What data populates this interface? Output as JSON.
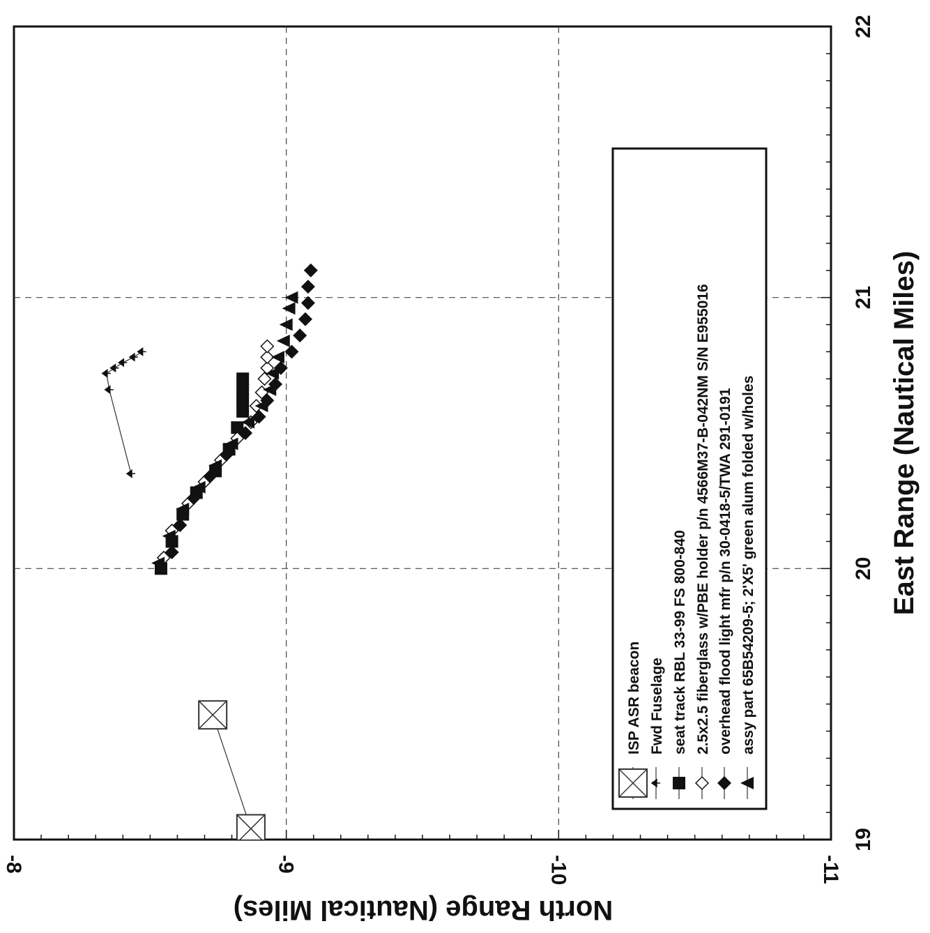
{
  "chart_data": {
    "type": "scatter",
    "xlabel": "East Range (Nautical Miles)",
    "ylabel": "North Range (Nautical Miles)",
    "xlim": [
      19,
      22
    ],
    "ylim": [
      -11,
      -8
    ],
    "xticks": [
      19,
      20,
      21,
      22
    ],
    "xtick_labels": [
      "19",
      "20",
      "21",
      "22"
    ],
    "yticks": [
      -8,
      -9,
      -10,
      -11
    ],
    "ytick_labels": [
      "-8",
      "-9",
      "-10",
      "-11"
    ],
    "grid": true,
    "legend_position": "lower-left",
    "series": [
      {
        "name": "ISP ASR beacon",
        "marker": "boxed-x",
        "line": true,
        "points": [
          [
            19.04,
            -8.87
          ],
          [
            19.46,
            -8.73
          ]
        ]
      },
      {
        "name": "Fwd Fuselage",
        "marker": "small-arrow",
        "line": true,
        "points": [
          [
            20.35,
            -8.43
          ],
          [
            20.66,
            -8.35
          ],
          [
            20.72,
            -8.34
          ],
          [
            20.74,
            -8.37
          ],
          [
            20.76,
            -8.4
          ],
          [
            20.78,
            -8.44
          ],
          [
            20.8,
            -8.47
          ]
        ]
      },
      {
        "name": "seat track RBL 33-99 FS 800-840",
        "marker": "filled-square",
        "line": false,
        "points": [
          [
            20.0,
            -8.54
          ],
          [
            20.1,
            -8.58
          ],
          [
            20.2,
            -8.62
          ],
          [
            20.28,
            -8.67
          ],
          [
            20.36,
            -8.74
          ],
          [
            20.44,
            -8.79
          ],
          [
            20.52,
            -8.82
          ],
          [
            20.58,
            -8.84
          ],
          [
            20.62,
            -8.84
          ],
          [
            20.66,
            -8.84
          ],
          [
            20.7,
            -8.84
          ]
        ]
      },
      {
        "name": "2.5x2.5 fiberglass w/PBE holder p/n 4566M37-B-042NM S/N E955016",
        "marker": "open-diamond",
        "line": false,
        "points": [
          [
            20.04,
            -8.55
          ],
          [
            20.14,
            -8.58
          ],
          [
            20.24,
            -8.64
          ],
          [
            20.32,
            -8.7
          ],
          [
            20.4,
            -8.76
          ],
          [
            20.48,
            -8.82
          ],
          [
            20.54,
            -8.87
          ],
          [
            20.6,
            -8.89
          ],
          [
            20.65,
            -8.91
          ],
          [
            20.7,
            -8.92
          ],
          [
            20.74,
            -8.93
          ],
          [
            20.78,
            -8.93
          ],
          [
            20.82,
            -8.93
          ]
        ]
      },
      {
        "name": "overhead flood light mfr p/n 30-0418-5/TWA 291-0191",
        "marker": "filled-diamond",
        "line": false,
        "points": [
          [
            20.06,
            -8.58
          ],
          [
            20.16,
            -8.61
          ],
          [
            20.26,
            -8.66
          ],
          [
            20.34,
            -8.72
          ],
          [
            20.42,
            -8.78
          ],
          [
            20.5,
            -8.85
          ],
          [
            20.56,
            -8.9
          ],
          [
            20.62,
            -8.93
          ],
          [
            20.68,
            -8.96
          ],
          [
            20.74,
            -8.98
          ],
          [
            20.8,
            -9.02
          ],
          [
            20.86,
            -9.05
          ],
          [
            20.92,
            -9.07
          ],
          [
            20.98,
            -9.08
          ],
          [
            21.04,
            -9.08
          ],
          [
            21.1,
            -9.09
          ]
        ]
      },
      {
        "name": "assy part 65B54209-5; 2'X5' green alum folded w/holes",
        "marker": "filled-triangle",
        "line": false,
        "points": [
          [
            20.02,
            -8.53
          ],
          [
            20.12,
            -8.57
          ],
          [
            20.22,
            -8.62
          ],
          [
            20.3,
            -8.68
          ],
          [
            20.38,
            -8.74
          ],
          [
            20.46,
            -8.8
          ],
          [
            20.54,
            -8.86
          ],
          [
            20.6,
            -8.91
          ],
          [
            20.66,
            -8.94
          ],
          [
            20.72,
            -8.95
          ],
          [
            20.78,
            -8.97
          ],
          [
            20.84,
            -8.99
          ],
          [
            20.9,
            -9.0
          ],
          [
            20.96,
            -9.01
          ],
          [
            21.0,
            -9.02
          ]
        ]
      }
    ]
  }
}
